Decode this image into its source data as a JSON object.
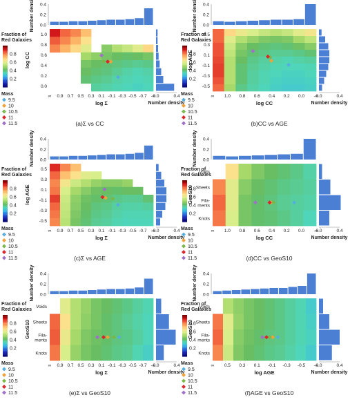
{
  "labels": {
    "number_density": "Number density",
    "fraction_title_1": "Fraction of",
    "fraction_title_2": "Red Galaxies",
    "mass_title": "Mass",
    "colorbar_ticks": [
      "0.8",
      "0.6",
      "0.4",
      "0.2"
    ],
    "mass_values": [
      "9.5",
      "10",
      "10.5",
      "11",
      "11.5"
    ]
  },
  "colors": {
    "histogram_bar": "#4a7fd4",
    "mass": [
      "#56aee0",
      "#f0a23a",
      "#7ab648",
      "#d8262a",
      "#a070c8"
    ],
    "colormap": [
      "#7a0000",
      "#d7191c",
      "#f46d43",
      "#fdae61",
      "#fee08b",
      "#d9ef8b",
      "#a6d96a",
      "#66bd63",
      "#4fd6b8",
      "#39b9e8",
      "#2a6fdc",
      "#1f2ab8",
      "#0a0a78"
    ]
  },
  "chart_data": [
    {
      "type": "heatmap",
      "caption": "(a)Σ vs CC",
      "xlabel": "log Σ",
      "ylabel": "log CC",
      "x_ticks": [
        "∞",
        "0.9",
        "0.7",
        "0.5",
        "0.3",
        "0.1",
        "-0.1",
        "-0.3",
        "-0.5",
        "-0.7",
        "-∞"
      ],
      "y_ticks": [
        "1.0",
        "0.8",
        "0.6",
        "0.4",
        "0.2",
        "0.0"
      ],
      "top_hist": {
        "ticks": [
          "0.4",
          "0.2",
          "0.0"
        ],
        "values": [
          0.06,
          0.06,
          0.07,
          0.07,
          0.08,
          0.09,
          0.1,
          0.1,
          0.11,
          0.13,
          0.32
        ]
      },
      "right_hist": {
        "ticks": [
          "0.0",
          "0.4"
        ],
        "values": [
          0.03,
          0.03,
          0.04,
          0.05,
          0.07,
          0.1,
          0.14,
          0.35
        ]
      },
      "grid": [
        [
          0.92,
          0.84,
          0.8,
          0.72,
          null,
          null,
          null,
          null,
          null,
          null
        ],
        [
          0.85,
          0.8,
          0.74,
          0.66,
          null,
          null,
          null,
          null,
          null,
          null
        ],
        [
          0.8,
          0.74,
          0.68,
          0.6,
          null,
          0.46,
          0.52,
          0.55,
          0.6,
          0.68
        ],
        [
          null,
          null,
          null,
          0.5,
          0.47,
          0.44,
          0.42,
          0.41,
          0.42,
          0.44
        ],
        [
          null,
          null,
          null,
          0.44,
          0.42,
          0.4,
          0.39,
          0.38,
          0.37,
          0.38
        ],
        [
          null,
          null,
          null,
          0.42,
          0.4,
          0.39,
          0.37,
          0.35,
          0.34,
          0.35
        ],
        [
          null,
          null,
          null,
          0.4,
          0.38,
          0.37,
          0.35,
          0.34,
          0.33,
          0.34
        ],
        [
          null,
          null,
          null,
          null,
          0.36,
          0.35,
          0.34,
          0.33,
          0.32,
          0.33
        ]
      ],
      "mass_points": [
        {
          "mass": "9.5",
          "col": 6.6,
          "row": 6.2
        },
        {
          "mass": "10",
          "col": 5.9,
          "row": 4.2
        },
        {
          "mass": "10.5",
          "col": 5.2,
          "row": 4.2
        },
        {
          "mass": "11",
          "col": 5.6,
          "row": 4.2
        },
        {
          "mass": "11.5",
          "col": 5.0,
          "row": 3.4
        }
      ]
    },
    {
      "type": "heatmap",
      "caption": "(b)CC vs AGE",
      "xlabel": "log CC",
      "ylabel": "log AGE",
      "x_ticks": [
        "∞",
        "1.0",
        "0.8",
        "0.6",
        "0.4",
        "0.2",
        "0.0",
        "-∞"
      ],
      "y_ticks": [
        "0.5",
        "0.3",
        "0.1",
        "-0.1",
        "-0.3",
        "-0.5"
      ],
      "top_hist": {
        "ticks": [
          "0.4",
          "0.2",
          "0.0"
        ],
        "values": [
          0.07,
          0.06,
          0.07,
          0.08,
          0.09,
          0.1,
          0.1,
          0.11,
          0.4
        ]
      },
      "right_hist": {
        "ticks": [
          "0.0",
          "0.4"
        ],
        "values": [
          0.05,
          0.12,
          0.18,
          0.2,
          0.2,
          0.18,
          0.14,
          0.1,
          0.06
        ]
      },
      "grid": [
        [
          0.84,
          0.68,
          0.62,
          0.58,
          0.55,
          0.53,
          0.55,
          0.6,
          0.64
        ],
        [
          0.84,
          0.6,
          0.52,
          0.48,
          0.45,
          0.44,
          0.45,
          0.5,
          0.54
        ],
        [
          0.86,
          0.56,
          0.46,
          0.42,
          0.4,
          0.39,
          0.4,
          0.43,
          0.46
        ],
        [
          0.86,
          0.54,
          0.44,
          0.4,
          0.38,
          0.37,
          0.37,
          0.38,
          0.4
        ],
        [
          0.87,
          0.52,
          0.42,
          0.38,
          0.36,
          0.35,
          0.34,
          0.35,
          0.36
        ],
        [
          0.88,
          0.52,
          0.4,
          0.37,
          0.35,
          0.34,
          0.33,
          0.33,
          0.34
        ],
        [
          0.88,
          0.52,
          0.4,
          0.36,
          0.34,
          0.33,
          0.32,
          0.32,
          0.33
        ],
        [
          0.86,
          0.52,
          0.4,
          0.36,
          0.34,
          0.32,
          0.31,
          0.31,
          0.32
        ],
        [
          0.84,
          0.5,
          0.38,
          0.35,
          0.33,
          0.31,
          0.3,
          0.3,
          0.31
        ]
      ],
      "mass_points": [
        {
          "mass": "9.5",
          "col": 6.6,
          "row": 5.2
        },
        {
          "mass": "10",
          "col": 5.1,
          "row": 4.6
        },
        {
          "mass": "10.5",
          "col": 5.0,
          "row": 4.1
        },
        {
          "mass": "11",
          "col": 4.8,
          "row": 4.0
        },
        {
          "mass": "11.5",
          "col": 3.5,
          "row": 3.2
        }
      ]
    },
    {
      "type": "heatmap",
      "caption": "(c)Σ vs AGE",
      "xlabel": "log Σ",
      "ylabel": "log AGE",
      "x_ticks": [
        "∞",
        "0.9",
        "0.7",
        "0.5",
        "0.3",
        "0.1",
        "-0.1",
        "-0.3",
        "-0.5",
        "-0.7",
        "-∞"
      ],
      "y_ticks": [
        "0.5",
        "0.3",
        "0.1",
        "-0.1",
        "-0.3",
        "-0.5"
      ],
      "top_hist": {
        "ticks": [
          "0.4",
          "0.2",
          "0.0"
        ],
        "values": [
          0.06,
          0.06,
          0.07,
          0.07,
          0.08,
          0.09,
          0.1,
          0.1,
          0.11,
          0.13,
          0.27
        ]
      },
      "right_hist": {
        "ticks": [
          "0.0",
          "0.4"
        ],
        "values": [
          0.05,
          0.1,
          0.16,
          0.2,
          0.2,
          0.18,
          0.12,
          0.08
        ]
      },
      "grid": [
        [
          0.9,
          0.8,
          0.72,
          null,
          null,
          null,
          null,
          null,
          null,
          null
        ],
        [
          0.84,
          0.72,
          0.66,
          0.6,
          0.58,
          null,
          null,
          null,
          null,
          null
        ],
        [
          0.8,
          0.64,
          0.56,
          0.52,
          0.48,
          0.46,
          0.46,
          0.48,
          null,
          null
        ],
        [
          0.82,
          0.58,
          0.5,
          0.46,
          0.43,
          0.42,
          0.41,
          0.42,
          0.42,
          null
        ],
        [
          0.88,
          0.56,
          0.47,
          0.43,
          0.41,
          0.4,
          0.38,
          0.37,
          0.37,
          0.4
        ],
        [
          0.84,
          0.55,
          0.46,
          0.42,
          0.39,
          0.38,
          0.36,
          0.35,
          0.35,
          0.36
        ],
        [
          0.82,
          0.54,
          0.45,
          0.41,
          0.38,
          0.37,
          0.35,
          0.34,
          0.34,
          0.34
        ],
        [
          0.8,
          0.53,
          0.44,
          0.4,
          0.37,
          0.36,
          0.34,
          0.33,
          0.33,
          0.33
        ]
      ],
      "mass_points": [
        {
          "mass": "9.5",
          "col": 6.6,
          "row": 5.3
        },
        {
          "mass": "10",
          "col": 5.4,
          "row": 4.4
        },
        {
          "mass": "10.5",
          "col": 6.1,
          "row": 4.5
        },
        {
          "mass": "11",
          "col": 5.1,
          "row": 4.3
        },
        {
          "mass": "11.5",
          "col": 5.3,
          "row": 3.3
        }
      ]
    },
    {
      "type": "heatmap",
      "caption": "(d)CC vs GeoS10",
      "xlabel": "log CC",
      "ylabel": "GeoS10",
      "x_ticks": [
        "∞",
        "1.0",
        "0.8",
        "0.6",
        "0.4",
        "0.2",
        "0.0",
        "-∞"
      ],
      "y_ticks": [
        "Voids",
        "Sheets",
        "Fila-\nments",
        "Knots"
      ],
      "top_hist": {
        "ticks": [
          "0.4",
          "0.2",
          "0.0"
        ],
        "values": [
          0.07,
          0.06,
          0.07,
          0.08,
          0.09,
          0.1,
          0.11,
          0.4
        ]
      },
      "right_hist": {
        "ticks": [
          "0.0",
          "0.4"
        ],
        "values": [
          0.06,
          0.22,
          0.42,
          0.2
        ]
      },
      "grid": [
        [
          null,
          0.66,
          0.5,
          0.45,
          0.42,
          0.4,
          0.38,
          0.35
        ],
        [
          0.8,
          0.6,
          0.46,
          0.42,
          0.4,
          0.38,
          0.37,
          0.36
        ],
        [
          0.84,
          0.6,
          0.44,
          0.41,
          0.39,
          0.37,
          0.36,
          0.35
        ],
        [
          0.82,
          0.58,
          0.44,
          0.41,
          0.4,
          0.38,
          0.36,
          0.33
        ]
      ],
      "mass_points": [
        {
          "mass": "9.5",
          "col": 6.3,
          "row": 2.5
        },
        {
          "mass": "10",
          "col": 4.5,
          "row": 2.5
        },
        {
          "mass": "10.5",
          "col": 4.7,
          "row": 2.5
        },
        {
          "mass": "11",
          "col": 4.4,
          "row": 2.5
        },
        {
          "mass": "11.5",
          "col": 3.3,
          "row": 2.5
        }
      ]
    },
    {
      "type": "heatmap",
      "caption": "(e)Σ vs GeoS10",
      "xlabel": "log Σ",
      "ylabel": "GeoS10",
      "x_ticks": [
        "∞",
        "0.9",
        "0.7",
        "0.5",
        "0.3",
        "0.1",
        "-0.1",
        "-0.3",
        "-0.5",
        "-0.7",
        "-∞"
      ],
      "y_ticks": [
        "Voids",
        "Sheets",
        "Fila-\nments",
        "Knots"
      ],
      "top_hist": {
        "ticks": [
          "0.4",
          "0.2",
          "0.0"
        ],
        "values": [
          0.06,
          0.06,
          0.07,
          0.07,
          0.08,
          0.09,
          0.1,
          0.1,
          0.11,
          0.13,
          0.3
        ]
      },
      "right_hist": {
        "ticks": [
          "0.0",
          "0.4"
        ],
        "values": [
          0.1,
          0.25,
          0.38,
          0.15
        ]
      },
      "grid": [
        [
          null,
          0.6,
          0.52,
          0.48,
          0.44,
          0.42,
          0.4,
          0.38,
          0.36,
          0.34
        ],
        [
          0.84,
          0.66,
          0.52,
          0.47,
          0.44,
          0.41,
          0.39,
          0.37,
          0.35,
          0.33
        ],
        [
          0.85,
          0.62,
          0.5,
          0.45,
          0.43,
          0.41,
          0.39,
          0.38,
          0.36,
          0.33
        ],
        [
          0.82,
          0.58,
          0.48,
          0.44,
          0.42,
          0.4,
          0.38,
          0.37,
          0.34,
          0.31
        ]
      ],
      "mass_points": [
        {
          "mass": "9.5",
          "col": 6.7,
          "row": 2.5
        },
        {
          "mass": "10",
          "col": 5.6,
          "row": 2.5
        },
        {
          "mass": "10.5",
          "col": 6.2,
          "row": 2.5
        },
        {
          "mass": "11",
          "col": 5.2,
          "row": 2.5
        },
        {
          "mass": "11.5",
          "col": 4.6,
          "row": 2.5
        }
      ]
    },
    {
      "type": "heatmap",
      "caption": "(f)AGE vs GeoS10",
      "xlabel": "log AGE",
      "ylabel": "GeoS10",
      "x_ticks": [
        "∞",
        "0.5",
        "0.3",
        "0.1",
        "-0.1",
        "-0.3",
        "-0.5",
        "-∞"
      ],
      "y_ticks": [
        "Voids",
        "Sheets",
        "Fila-\nments",
        "Knots"
      ],
      "top_hist": {
        "ticks": [
          "0.4",
          "0.2",
          "0.0"
        ],
        "values": [
          0.06,
          0.07,
          0.08,
          0.09,
          0.1,
          0.11,
          0.12,
          0.12,
          0.14,
          0.16,
          0.4
        ]
      },
      "right_hist": {
        "ticks": [
          "0.0",
          "0.4"
        ],
        "values": [
          0.08,
          0.2,
          0.4,
          0.25
        ]
      },
      "grid": [
        [
          null,
          0.52,
          0.47,
          0.44,
          0.42,
          0.4,
          0.38,
          0.36,
          0.34,
          0.3
        ],
        [
          0.82,
          0.6,
          0.48,
          0.44,
          0.42,
          0.4,
          0.38,
          0.36,
          0.34,
          0.31
        ],
        [
          0.84,
          0.58,
          0.46,
          0.43,
          0.41,
          0.39,
          0.38,
          0.36,
          0.34,
          0.32
        ],
        [
          0.8,
          0.56,
          0.45,
          0.42,
          0.4,
          0.38,
          0.37,
          0.35,
          0.33,
          0.3
        ]
      ],
      "mass_points": [
        {
          "mass": "9.5",
          "col": 6.3,
          "row": 2.5
        },
        {
          "mass": "10",
          "col": 5.8,
          "row": 2.5
        },
        {
          "mass": "10.5",
          "col": 5.5,
          "row": 2.5
        },
        {
          "mass": "11",
          "col": 5.2,
          "row": 2.5
        },
        {
          "mass": "11.5",
          "col": 4.8,
          "row": 2.5
        }
      ]
    }
  ]
}
